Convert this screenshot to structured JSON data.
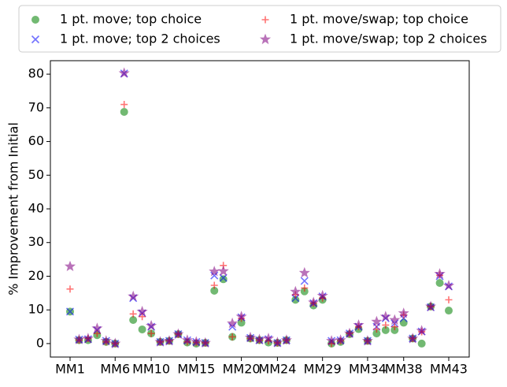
{
  "chart_data": {
    "type": "scatter",
    "ylabel": "% Improvement from Initial",
    "categories": [
      "MM1",
      null,
      null,
      null,
      null,
      "MM6",
      null,
      null,
      null,
      "MM10",
      null,
      null,
      null,
      null,
      "MM15",
      null,
      null,
      null,
      null,
      "MM20",
      null,
      null,
      null,
      "MM24",
      null,
      null,
      null,
      null,
      "MM29",
      null,
      null,
      null,
      null,
      "MM34",
      null,
      null,
      null,
      "MM38",
      null,
      null,
      null,
      null,
      "MM43"
    ],
    "ylim": [
      -4,
      84
    ],
    "yticks": [
      0,
      10,
      20,
      30,
      40,
      50,
      60,
      70,
      80
    ],
    "series": [
      {
        "name": "1 pt. move; top choice",
        "color": "#008000",
        "marker": "o",
        "values": [
          9.5,
          1,
          1,
          2.5,
          0.5,
          0,
          68.8,
          7,
          4.2,
          3,
          0.5,
          0.8,
          2.8,
          0.3,
          0,
          0.2,
          15.7,
          19.1,
          2,
          6.2,
          1.5,
          1,
          0.3,
          0.2,
          1,
          13,
          15.5,
          11.3,
          13,
          0,
          0.5,
          2.8,
          4.3,
          0.8,
          3,
          4,
          4,
          6.2,
          1.5,
          0,
          11,
          18,
          9.8
        ]
      },
      {
        "name": "1 pt. move; top 2 choices",
        "color": "#0000ff",
        "marker": "x",
        "values": [
          9.5,
          1.2,
          1.3,
          4,
          0.8,
          0,
          80.2,
          13.5,
          9,
          5,
          0.5,
          0.8,
          2.8,
          1,
          0.5,
          0.2,
          20.2,
          19.5,
          5,
          7.8,
          1.7,
          1,
          1.3,
          0.2,
          1,
          13.5,
          18.6,
          12,
          14,
          0.8,
          1,
          3,
          5,
          0.8,
          5,
          7.5,
          6,
          7.5,
          1.5,
          3.6,
          10.8,
          20,
          17
        ]
      },
      {
        "name": "1 pt. move/swap; top choice",
        "color": "#ff0000",
        "marker": "+",
        "values": [
          16.2,
          1,
          1.5,
          3,
          0.5,
          0,
          71,
          8.8,
          8,
          3,
          0.5,
          0.8,
          2.8,
          0.5,
          0.3,
          0.2,
          17.3,
          23.2,
          2,
          7.5,
          1.5,
          1,
          0.8,
          0.2,
          1,
          14.5,
          16.5,
          12,
          13.5,
          0,
          0.8,
          3,
          5,
          0.8,
          4.3,
          5.5,
          5,
          8.5,
          1.5,
          3.5,
          11,
          20.3,
          13
        ]
      },
      {
        "name": "1 pt. move/swap; top 2 choices",
        "color": "#800080",
        "marker": "*",
        "values": [
          22.9,
          1.2,
          1.5,
          4.5,
          0.8,
          0,
          80.3,
          14,
          9.5,
          5.3,
          0.5,
          0.8,
          2.8,
          1,
          0.5,
          0.2,
          21.4,
          21.5,
          6,
          8,
          1.8,
          1.2,
          1.5,
          0.3,
          1,
          15.4,
          21,
          12.2,
          14.2,
          0.8,
          1,
          3,
          5.5,
          0.8,
          6.5,
          8,
          7,
          9,
          1.5,
          3.8,
          11,
          20.7,
          17.2
        ]
      }
    ]
  }
}
